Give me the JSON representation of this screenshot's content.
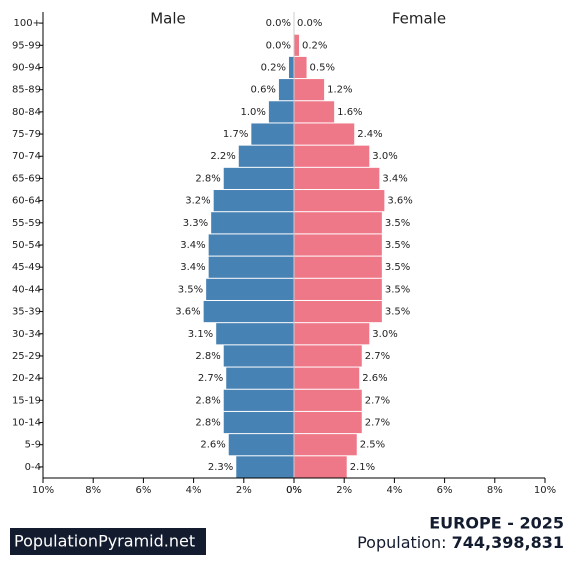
{
  "chart_data": {
    "type": "pyramid",
    "categories": [
      "100+",
      "95-99",
      "90-94",
      "85-89",
      "80-84",
      "75-79",
      "70-74",
      "65-69",
      "60-64",
      "55-59",
      "50-54",
      "45-49",
      "40-44",
      "35-39",
      "30-34",
      "25-29",
      "20-24",
      "15-19",
      "10-14",
      "5-9",
      "0-4"
    ],
    "series": [
      {
        "name": "Male",
        "color": "#4682b4",
        "values": [
          0.0,
          0.0,
          0.2,
          0.6,
          1.0,
          1.7,
          2.2,
          2.8,
          3.2,
          3.3,
          3.4,
          3.4,
          3.5,
          3.6,
          3.1,
          2.8,
          2.7,
          2.8,
          2.8,
          2.6,
          2.3
        ],
        "value_labels": [
          "0.0%",
          "0.0%",
          "0.2%",
          "0.6%",
          "1.0%",
          "1.7%",
          "2.2%",
          "2.8%",
          "3.2%",
          "3.3%",
          "3.4%",
          "3.4%",
          "3.5%",
          "3.6%",
          "3.1%",
          "2.8%",
          "2.7%",
          "2.8%",
          "2.8%",
          "2.6%",
          "2.3%"
        ]
      },
      {
        "name": "Female",
        "color": "#ef7888",
        "values": [
          0.0,
          0.2,
          0.5,
          1.2,
          1.6,
          2.4,
          3.0,
          3.4,
          3.6,
          3.5,
          3.5,
          3.5,
          3.5,
          3.5,
          3.0,
          2.7,
          2.6,
          2.7,
          2.7,
          2.5,
          2.1
        ],
        "value_labels": [
          "0.0%",
          "0.2%",
          "0.5%",
          "1.2%",
          "1.6%",
          "2.4%",
          "3.0%",
          "3.4%",
          "3.6%",
          "3.5%",
          "3.5%",
          "3.5%",
          "3.5%",
          "3.5%",
          "3.0%",
          "2.7%",
          "2.6%",
          "2.7%",
          "2.7%",
          "2.5%",
          "2.1%"
        ]
      }
    ],
    "xlim": [
      0,
      10
    ],
    "xticks": [
      {
        "value": 0,
        "label": "0%"
      },
      {
        "value": 2,
        "label": "2%"
      },
      {
        "value": 4,
        "label": "4%"
      },
      {
        "value": 6,
        "label": "6%"
      },
      {
        "value": 8,
        "label": "8%"
      },
      {
        "value": 10,
        "label": "10%"
      }
    ]
  },
  "footer": {
    "brand": "PopulationPyramid.net",
    "heading": "EUROPE - 2025",
    "population_label": "Population:",
    "population_value": "744,398,831"
  }
}
